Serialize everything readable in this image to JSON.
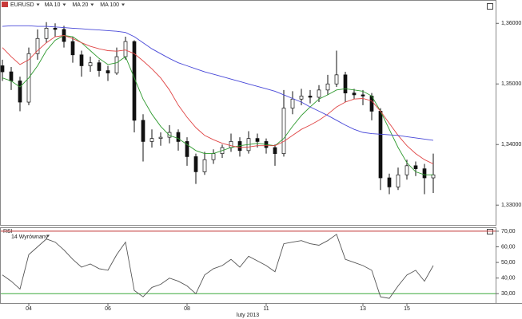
{
  "chart_data": [
    {
      "type": "candlestick",
      "title": "EURUSD",
      "categories": [
        null,
        null,
        null,
        "04",
        null,
        null,
        null,
        null,
        null,
        null,
        null,
        null,
        "06",
        null,
        null,
        null,
        null,
        null,
        null,
        null,
        null,
        "08",
        null,
        null,
        null,
        null,
        null,
        null,
        null,
        null,
        "11",
        null,
        null,
        null,
        null,
        null,
        null,
        null,
        null,
        null,
        null,
        "13",
        null,
        null,
        null,
        null,
        "15",
        null,
        null,
        null
      ],
      "candles": [
        [
          1.353,
          1.354,
          1.3505,
          1.352
        ],
        [
          1.352,
          1.3528,
          1.349,
          1.3505
        ],
        [
          1.3505,
          1.3512,
          1.3455,
          1.347
        ],
        [
          1.347,
          1.356,
          1.3465,
          1.355
        ],
        [
          1.355,
          1.359,
          1.354,
          1.3575
        ],
        [
          1.3575,
          1.3602,
          1.3568,
          1.3592
        ],
        [
          1.3592,
          1.36,
          1.3578,
          1.359
        ],
        [
          1.359,
          1.3596,
          1.356,
          1.357
        ],
        [
          1.357,
          1.3578,
          1.3535,
          1.3548
        ],
        [
          1.3548,
          1.3555,
          1.3512,
          1.353
        ],
        [
          1.353,
          1.3545,
          1.352,
          1.3535
        ],
        [
          1.3535,
          1.354,
          1.3512,
          1.3522
        ],
        [
          1.3522,
          1.353,
          1.3505,
          1.3518
        ],
        [
          1.3518,
          1.356,
          1.3515,
          1.3545
        ],
        [
          1.3545,
          1.3578,
          1.354,
          1.357
        ],
        [
          1.357,
          1.3572,
          1.342,
          1.344
        ],
        [
          1.344,
          1.345,
          1.3372,
          1.3405
        ],
        [
          1.3405,
          1.3425,
          1.3395,
          1.341
        ],
        [
          1.341,
          1.342,
          1.3398,
          1.3412
        ],
        [
          1.3412,
          1.3432,
          1.3402,
          1.342
        ],
        [
          1.342,
          1.3425,
          1.339,
          1.3405
        ],
        [
          1.3405,
          1.3412,
          1.3365,
          1.338
        ],
        [
          1.338,
          1.3385,
          1.3335,
          1.3355
        ],
        [
          1.3355,
          1.3388,
          1.335,
          1.3375
        ],
        [
          1.3375,
          1.3392,
          1.3368,
          1.3385
        ],
        [
          1.3385,
          1.34,
          1.3378,
          1.3395
        ],
        [
          1.3395,
          1.3418,
          1.3388,
          1.3405
        ],
        [
          1.3405,
          1.3412,
          1.338,
          1.339
        ],
        [
          1.339,
          1.3422,
          1.3385,
          1.341
        ],
        [
          1.341,
          1.3418,
          1.3395,
          1.3405
        ],
        [
          1.3405,
          1.341,
          1.3385,
          1.3395
        ],
        [
          1.3395,
          1.34,
          1.3365,
          1.3385
        ],
        [
          1.3385,
          1.349,
          1.338,
          1.346
        ],
        [
          1.346,
          1.3488,
          1.345,
          1.3475
        ],
        [
          1.3475,
          1.3492,
          1.3465,
          1.348
        ],
        [
          1.348,
          1.349,
          1.3468,
          1.3478
        ],
        [
          1.3478,
          1.3498,
          1.347,
          1.349
        ],
        [
          1.349,
          1.3515,
          1.3482,
          1.35
        ],
        [
          1.35,
          1.3555,
          1.3495,
          1.3515
        ],
        [
          1.3515,
          1.352,
          1.347,
          1.3485
        ],
        [
          1.3485,
          1.3492,
          1.3475,
          1.3482
        ],
        [
          1.3482,
          1.349,
          1.3465,
          1.348
        ],
        [
          1.348,
          1.3485,
          1.344,
          1.3455
        ],
        [
          1.3455,
          1.346,
          1.3325,
          1.3345
        ],
        [
          1.3345,
          1.3352,
          1.3318,
          1.333
        ],
        [
          1.333,
          1.3362,
          1.3325,
          1.335
        ],
        [
          1.335,
          1.3375,
          1.3342,
          1.3365
        ],
        [
          1.3365,
          1.3372,
          1.3348,
          1.336
        ],
        [
          1.336,
          1.3368,
          1.3318,
          1.3345
        ],
        [
          1.3345,
          1.3385,
          1.332,
          1.335
        ]
      ],
      "series": [
        {
          "name": "MA 10",
          "color": "#2e9a2e",
          "values": [
            1.351,
            1.3505,
            1.3495,
            1.351,
            1.353,
            1.3555,
            1.3572,
            1.358,
            1.3578,
            1.3568,
            1.3555,
            1.3542,
            1.3532,
            1.3535,
            1.3545,
            1.351,
            1.3475,
            1.345,
            1.343,
            1.3415,
            1.341,
            1.34,
            1.339,
            1.3385,
            1.3385,
            1.339,
            1.3395,
            1.3398,
            1.34,
            1.3402,
            1.34,
            1.3398,
            1.341,
            1.343,
            1.3448,
            1.3462,
            1.3475,
            1.3482,
            1.349,
            1.3492,
            1.349,
            1.3488,
            1.348,
            1.3455,
            1.3425,
            1.3395,
            1.337,
            1.3355,
            1.335,
            1.335
          ]
        },
        {
          "name": "MA 20",
          "color": "#e04545",
          "values": [
            1.356,
            1.3545,
            1.3532,
            1.354,
            1.3555,
            1.3568,
            1.3578,
            1.358,
            1.3575,
            1.3568,
            1.3562,
            1.3558,
            1.3555,
            1.3554,
            1.3556,
            1.355,
            1.3538,
            1.3525,
            1.351,
            1.349,
            1.3465,
            1.3445,
            1.3428,
            1.3415,
            1.3408,
            1.3402,
            1.3398,
            1.3395,
            1.3396,
            1.3398,
            1.3398,
            1.3398,
            1.3405,
            1.3415,
            1.3425,
            1.3432,
            1.344,
            1.345,
            1.3462,
            1.347,
            1.3475,
            1.3476,
            1.3472,
            1.3455,
            1.3435,
            1.3415,
            1.3398,
            1.3385,
            1.3375,
            1.3368
          ]
        },
        {
          "name": "MA 100",
          "color": "#4848d8",
          "values": [
            1.3595,
            1.3596,
            1.3596,
            1.3596,
            1.3595,
            1.3595,
            1.3594,
            1.3593,
            1.3592,
            1.3591,
            1.359,
            1.3589,
            1.3588,
            1.3587,
            1.3585,
            1.3578,
            1.3568,
            1.3558,
            1.355,
            1.3542,
            1.3535,
            1.353,
            1.3525,
            1.352,
            1.3516,
            1.3512,
            1.3508,
            1.3504,
            1.35,
            1.3496,
            1.3492,
            1.3488,
            1.3482,
            1.3476,
            1.347,
            1.3462,
            1.3455,
            1.3448,
            1.344,
            1.3432,
            1.3425,
            1.342,
            1.3418,
            1.3417,
            1.3416,
            1.3415,
            1.3413,
            1.3411,
            1.3409,
            1.3407
          ]
        }
      ],
      "ylim": [
        1.327,
        1.3628
      ],
      "yticks": [
        {
          "value": 1.33,
          "label": "1,33000"
        },
        {
          "value": 1.34,
          "label": "1,34000"
        },
        {
          "value": 1.35,
          "label": "1,35000"
        },
        {
          "value": 1.36,
          "label": "1,36000"
        }
      ],
      "x_label": "luty 2013"
    },
    {
      "type": "line",
      "title": "RSI",
      "subtitle": "14 Wyrównany",
      "series": [
        {
          "color": "#555555",
          "values": [
            42,
            38,
            33,
            55,
            60,
            65,
            63,
            58,
            52,
            47,
            49,
            46,
            45,
            55,
            63,
            32,
            28,
            34,
            36,
            40,
            38,
            35,
            30,
            42,
            46,
            48,
            52,
            47,
            54,
            51,
            48,
            44,
            62,
            63,
            64,
            62,
            61,
            64,
            68,
            52,
            50,
            48,
            45,
            28,
            27,
            35,
            42,
            45,
            38,
            48
          ]
        }
      ],
      "ylim": [
        24,
        72
      ],
      "yticks": [
        {
          "value": 30,
          "label": "30,00"
        },
        {
          "value": 40,
          "label": "40,00"
        },
        {
          "value": 50,
          "label": "50,00"
        },
        {
          "value": 60,
          "label": "60,00"
        },
        {
          "value": 70,
          "label": "70,00"
        }
      ],
      "levels": [
        {
          "value": 70,
          "color": "#c03030"
        },
        {
          "value": 30,
          "color": "#3aa83a"
        }
      ]
    }
  ]
}
